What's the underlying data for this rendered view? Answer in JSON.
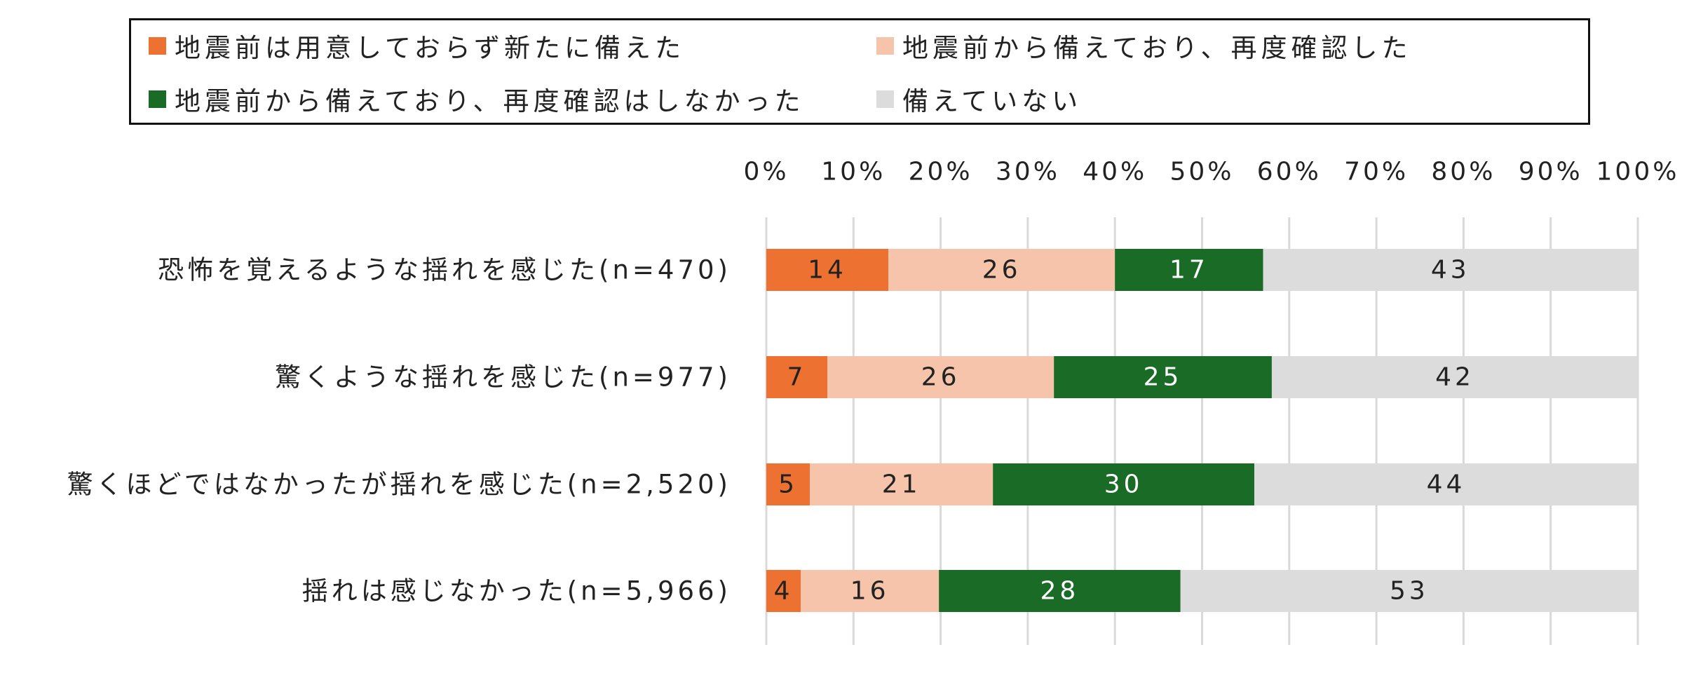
{
  "chart_data": {
    "type": "bar",
    "orientation": "horizontal",
    "stacked": true,
    "percent_stacked": true,
    "categories": [
      "恐怖を覚えるような揺れを感じた(n=470)",
      "驚くような揺れを感じた(n=977)",
      "驚くほどではなかったが揺れを感じた(n=2,520)",
      "揺れは感じなかった(n=5,966)"
    ],
    "series": [
      {
        "name": "地震前は用意しておらず新たに備えた",
        "color": "#ED7232",
        "label_color": "#222222",
        "values": [
          14,
          7,
          5,
          4
        ]
      },
      {
        "name": "地震前から備えており、再度確認した",
        "color": "#F6C4AA",
        "label_color": "#222222",
        "values": [
          26,
          26,
          21,
          16
        ]
      },
      {
        "name": "地震前から備えており、再度確認はしなかった",
        "color": "#1A6B25",
        "label_color": "#FFFFFF",
        "values": [
          17,
          25,
          30,
          28
        ]
      },
      {
        "name": "備えていない",
        "color": "#DCDCDC",
        "label_color": "#222222",
        "values": [
          43,
          42,
          44,
          53
        ]
      }
    ],
    "xlim": [
      0,
      100
    ],
    "x_ticks": [
      "0%",
      "10%",
      "20%",
      "30%",
      "40%",
      "50%",
      "60%",
      "70%",
      "80%",
      "90%",
      "100%"
    ],
    "x_axis_position": "top",
    "grid": true,
    "legend_position": "top",
    "title": "",
    "xlabel": "",
    "ylabel": ""
  }
}
